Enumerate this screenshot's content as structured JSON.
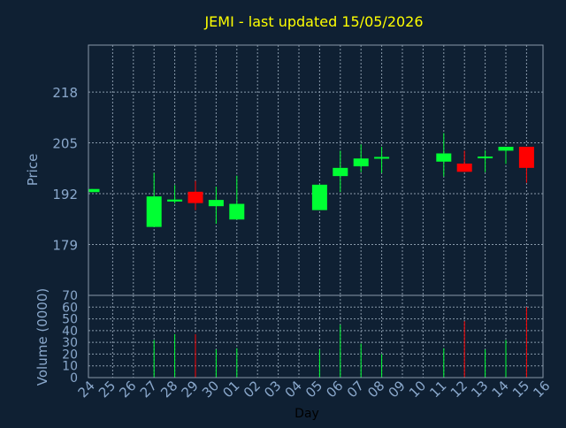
{
  "chart_data": {
    "type": "candlestick",
    "title": "JEMI - last updated 15/05/2026",
    "price_panel": {
      "ylabel": "Price",
      "ylim": [
        166,
        230
      ],
      "yticks": [
        179,
        192,
        205,
        218
      ]
    },
    "volume_panel": {
      "ylabel": "Volume (0000)",
      "ylim": [
        0,
        70
      ],
      "yticks": [
        0,
        10,
        20,
        30,
        40,
        50,
        60,
        70
      ]
    },
    "xlabel": "Day",
    "x_ticks": [
      "24",
      "25",
      "26",
      "27",
      "28",
      "29",
      "30",
      "01",
      "02",
      "03",
      "04",
      "05",
      "06",
      "07",
      "08",
      "09",
      "10",
      "11",
      "12",
      "13",
      "14",
      "15",
      "16"
    ],
    "candles": [
      {
        "day": "24",
        "open": 192.4,
        "close": 193.2,
        "high": 193.2,
        "low": 192.4,
        "volume": 0
      },
      {
        "day": "27",
        "open": 183.5,
        "close": 191.3,
        "high": 197.3,
        "low": 183.5,
        "volume": 32
      },
      {
        "day": "28",
        "open": 190.0,
        "close": 190.5,
        "high": 194.2,
        "low": 189.5,
        "volume": 37
      },
      {
        "day": "29",
        "open": 192.5,
        "close": 189.6,
        "high": 195.3,
        "low": 187.8,
        "volume": 37
      },
      {
        "day": "30",
        "open": 188.8,
        "close": 190.4,
        "high": 193.8,
        "low": 184.3,
        "volume": 24
      },
      {
        "day": "01",
        "open": 185.4,
        "close": 189.4,
        "high": 196.6,
        "low": 185.4,
        "volume": 25
      },
      {
        "day": "05",
        "open": 187.8,
        "close": 194.3,
        "high": 194.3,
        "low": 187.8,
        "volume": 24
      },
      {
        "day": "06",
        "open": 196.5,
        "close": 198.6,
        "high": 203.0,
        "low": 192.4,
        "volume": 45
      },
      {
        "day": "07",
        "open": 199.0,
        "close": 201.0,
        "high": 204.6,
        "low": 197.5,
        "volume": 29
      },
      {
        "day": "08",
        "open": 201.0,
        "close": 201.4,
        "high": 204.0,
        "low": 197.3,
        "volume": 20
      },
      {
        "day": "11",
        "open": 200.2,
        "close": 202.3,
        "high": 207.5,
        "low": 196.4,
        "volume": 25
      },
      {
        "day": "12",
        "open": 199.7,
        "close": 197.6,
        "high": 203.0,
        "low": 197.6,
        "volume": 48
      },
      {
        "day": "13",
        "open": 201.1,
        "close": 201.5,
        "high": 203.1,
        "low": 197.5,
        "volume": 24
      },
      {
        "day": "14",
        "open": 203.0,
        "close": 204.0,
        "high": 204.0,
        "low": 199.6,
        "volume": 32
      },
      {
        "day": "15",
        "open": 204.0,
        "close": 198.6,
        "high": 204.0,
        "low": 194.8,
        "volume": 60
      }
    ],
    "grid": true
  },
  "colors": {
    "background": "#0f2033",
    "axis_text": "#8aa8cc",
    "title": "#ffff00",
    "up": "#00ff33",
    "down": "#ff0000",
    "grid": "#8899aa",
    "frame": "#8899aa",
    "xlabel": "#000000"
  }
}
